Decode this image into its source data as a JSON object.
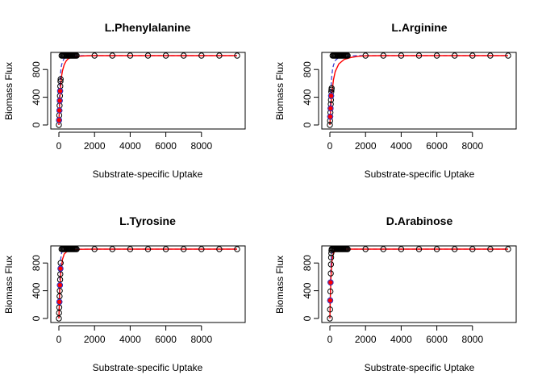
{
  "chart_data": [
    {
      "type": "scatter",
      "title": "L.Phenylalanine",
      "xlabel": "Substrate-specific Uptake",
      "ylabel": "Biomass Flux",
      "xlim": [
        0,
        10000
      ],
      "ylim": [
        0,
        1000
      ],
      "xticks": [
        0,
        2000,
        4000,
        6000,
        8000
      ],
      "yticks": [
        0,
        400,
        800
      ],
      "grid": false,
      "points": {
        "x": [
          0,
          10,
          20,
          30,
          40,
          50,
          60,
          70,
          80,
          90,
          100,
          150,
          200,
          250,
          300,
          350,
          400,
          450,
          500,
          550,
          600,
          650,
          700,
          750,
          800,
          850,
          900,
          950,
          1000,
          2000,
          3000,
          4000,
          5000,
          6000,
          7000,
          8000,
          9000,
          10000
        ],
        "y": [
          0,
          70,
          140,
          210,
          280,
          350,
          420,
          490,
          560,
          630,
          660,
          1000,
          1000,
          1000,
          1000,
          1000,
          1000,
          1000,
          1000,
          1000,
          1000,
          1000,
          1000,
          1000,
          1000,
          1000,
          1000,
          1000,
          1000,
          1000,
          1000,
          1000,
          1000,
          1000,
          1000,
          1000,
          1000,
          1000
        ]
      },
      "highlighted_points": {
        "x": [
          10,
          30,
          50,
          70
        ],
        "y": [
          70,
          210,
          350,
          490
        ]
      },
      "line_series": [
        {
          "style": "dashed",
          "color": "#3333cc",
          "x": [
            0,
            20,
            40,
            60,
            80,
            100,
            120,
            150,
            200,
            300,
            400,
            600,
            1000,
            2000,
            10000
          ],
          "y": [
            0,
            280,
            470,
            600,
            690,
            760,
            810,
            860,
            910,
            960,
            980,
            995,
            1000,
            1000,
            1000
          ]
        },
        {
          "style": "solid",
          "color": "#ff0000",
          "x": [
            0,
            20,
            50,
            100,
            150,
            200,
            300,
            400,
            500,
            700,
            1000,
            1500,
            2000,
            3000,
            10000
          ],
          "y": [
            0,
            150,
            350,
            560,
            700,
            780,
            870,
            920,
            950,
            975,
            990,
            997,
            1000,
            1000,
            1000
          ]
        }
      ]
    },
    {
      "type": "scatter",
      "title": "L.Arginine",
      "xlabel": "Substrate-specific Uptake",
      "ylabel": "Biomass Flux",
      "xlim": [
        0,
        10000
      ],
      "ylim": [
        0,
        1000
      ],
      "xticks": [
        0,
        2000,
        4000,
        6000,
        8000
      ],
      "yticks": [
        0,
        400,
        800
      ],
      "grid": false,
      "points": {
        "x": [
          0,
          10,
          20,
          30,
          40,
          50,
          60,
          70,
          80,
          90,
          100,
          150,
          200,
          250,
          300,
          350,
          400,
          450,
          500,
          550,
          600,
          650,
          700,
          750,
          800,
          850,
          900,
          950,
          1000,
          2000,
          3000,
          4000,
          5000,
          6000,
          7000,
          8000,
          9000,
          10000
        ],
        "y": [
          0,
          60,
          120,
          180,
          240,
          300,
          360,
          420,
          480,
          510,
          530,
          1000,
          1000,
          1000,
          1000,
          1000,
          1000,
          1000,
          1000,
          1000,
          1000,
          1000,
          1000,
          1000,
          1000,
          1000,
          1000,
          1000,
          1000,
          1000,
          1000,
          1000,
          1000,
          1000,
          1000,
          1000,
          1000,
          1000
        ]
      },
      "highlighted_points": {
        "x": [
          20,
          40,
          70
        ],
        "y": [
          120,
          240,
          420
        ]
      },
      "line_series": [
        {
          "style": "dashed",
          "color": "#3333cc",
          "x": [
            0,
            20,
            40,
            60,
            80,
            100,
            150,
            200,
            300,
            500,
            800,
            1500,
            10000
          ],
          "y": [
            0,
            200,
            380,
            510,
            610,
            690,
            800,
            860,
            930,
            975,
            992,
            1000,
            1000
          ]
        },
        {
          "style": "solid",
          "color": "#ff0000",
          "x": [
            0,
            50,
            100,
            200,
            300,
            500,
            800,
            1200,
            1600,
            2000,
            3000,
            10000
          ],
          "y": [
            0,
            250,
            430,
            650,
            770,
            880,
            945,
            975,
            990,
            997,
            1000,
            1000
          ]
        }
      ]
    },
    {
      "type": "scatter",
      "title": "L.Tyrosine",
      "xlabel": "Substrate-specific Uptake",
      "ylabel": "Biomass Flux",
      "xlim": [
        0,
        10000
      ],
      "ylim": [
        0,
        1000
      ],
      "xticks": [
        0,
        2000,
        4000,
        6000,
        8000
      ],
      "yticks": [
        0,
        400,
        800
      ],
      "grid": false,
      "points": {
        "x": [
          0,
          10,
          20,
          30,
          40,
          50,
          60,
          70,
          80,
          90,
          100,
          150,
          200,
          250,
          300,
          350,
          400,
          450,
          500,
          550,
          600,
          650,
          700,
          750,
          800,
          850,
          900,
          950,
          1000,
          2000,
          3000,
          4000,
          5000,
          6000,
          7000,
          8000,
          9000,
          10000
        ],
        "y": [
          0,
          80,
          160,
          240,
          320,
          400,
          480,
          560,
          640,
          720,
          800,
          1000,
          1000,
          1000,
          1000,
          1000,
          1000,
          1000,
          1000,
          1000,
          1000,
          1000,
          1000,
          1000,
          1000,
          1000,
          1000,
          1000,
          1000,
          1000,
          1000,
          1000,
          1000,
          1000,
          1000,
          1000,
          1000,
          1000
        ]
      },
      "highlighted_points": {
        "x": [
          30,
          60,
          90
        ],
        "y": [
          240,
          480,
          720
        ]
      },
      "line_series": [
        {
          "style": "dashed",
          "color": "#3333cc",
          "x": [
            0,
            20,
            40,
            60,
            80,
            100,
            150,
            200,
            300,
            500,
            10000
          ],
          "y": [
            0,
            260,
            470,
            630,
            760,
            850,
            940,
            975,
            995,
            1000,
            1000
          ]
        },
        {
          "style": "solid",
          "color": "#ff0000",
          "x": [
            0,
            50,
            100,
            200,
            300,
            500,
            800,
            1200,
            2000,
            10000
          ],
          "y": [
            0,
            420,
            640,
            850,
            930,
            975,
            992,
            998,
            1000,
            1000
          ]
        }
      ]
    },
    {
      "type": "scatter",
      "title": "D.Arabinose",
      "xlabel": "Substrate-specific Uptake",
      "ylabel": "Biomass Flux",
      "xlim": [
        0,
        10000
      ],
      "ylim": [
        0,
        1000
      ],
      "xticks": [
        0,
        2000,
        4000,
        6000,
        8000
      ],
      "yticks": [
        0,
        400,
        800
      ],
      "grid": false,
      "points": {
        "x": [
          0,
          10,
          20,
          30,
          40,
          50,
          60,
          70,
          80,
          90,
          100,
          150,
          200,
          250,
          300,
          350,
          400,
          450,
          500,
          550,
          600,
          650,
          700,
          750,
          800,
          850,
          900,
          950,
          1000,
          2000,
          3000,
          4000,
          5000,
          6000,
          7000,
          8000,
          9000,
          10000
        ],
        "y": [
          0,
          130,
          260,
          390,
          520,
          650,
          780,
          880,
          940,
          980,
          1000,
          1000,
          1000,
          1000,
          1000,
          1000,
          1000,
          1000,
          1000,
          1000,
          1000,
          1000,
          1000,
          1000,
          1000,
          1000,
          1000,
          1000,
          1000,
          1000,
          1000,
          1000,
          1000,
          1000,
          1000,
          1000,
          1000,
          1000
        ]
      },
      "highlighted_points": {
        "x": [
          20,
          40
        ],
        "y": [
          260,
          520
        ]
      },
      "line_series": [
        {
          "style": "dashed",
          "color": "#3333cc",
          "x": [
            0,
            20,
            40,
            60,
            80,
            100,
            150,
            200,
            10000
          ],
          "y": [
            0,
            300,
            560,
            760,
            890,
            950,
            990,
            1000,
            1000
          ]
        },
        {
          "style": "solid",
          "color": "#ff0000",
          "x": [
            0,
            30,
            60,
            100,
            150,
            200,
            300,
            500,
            800,
            10000
          ],
          "y": [
            0,
            330,
            580,
            780,
            890,
            940,
            975,
            993,
            1000,
            1000
          ]
        }
      ]
    }
  ]
}
